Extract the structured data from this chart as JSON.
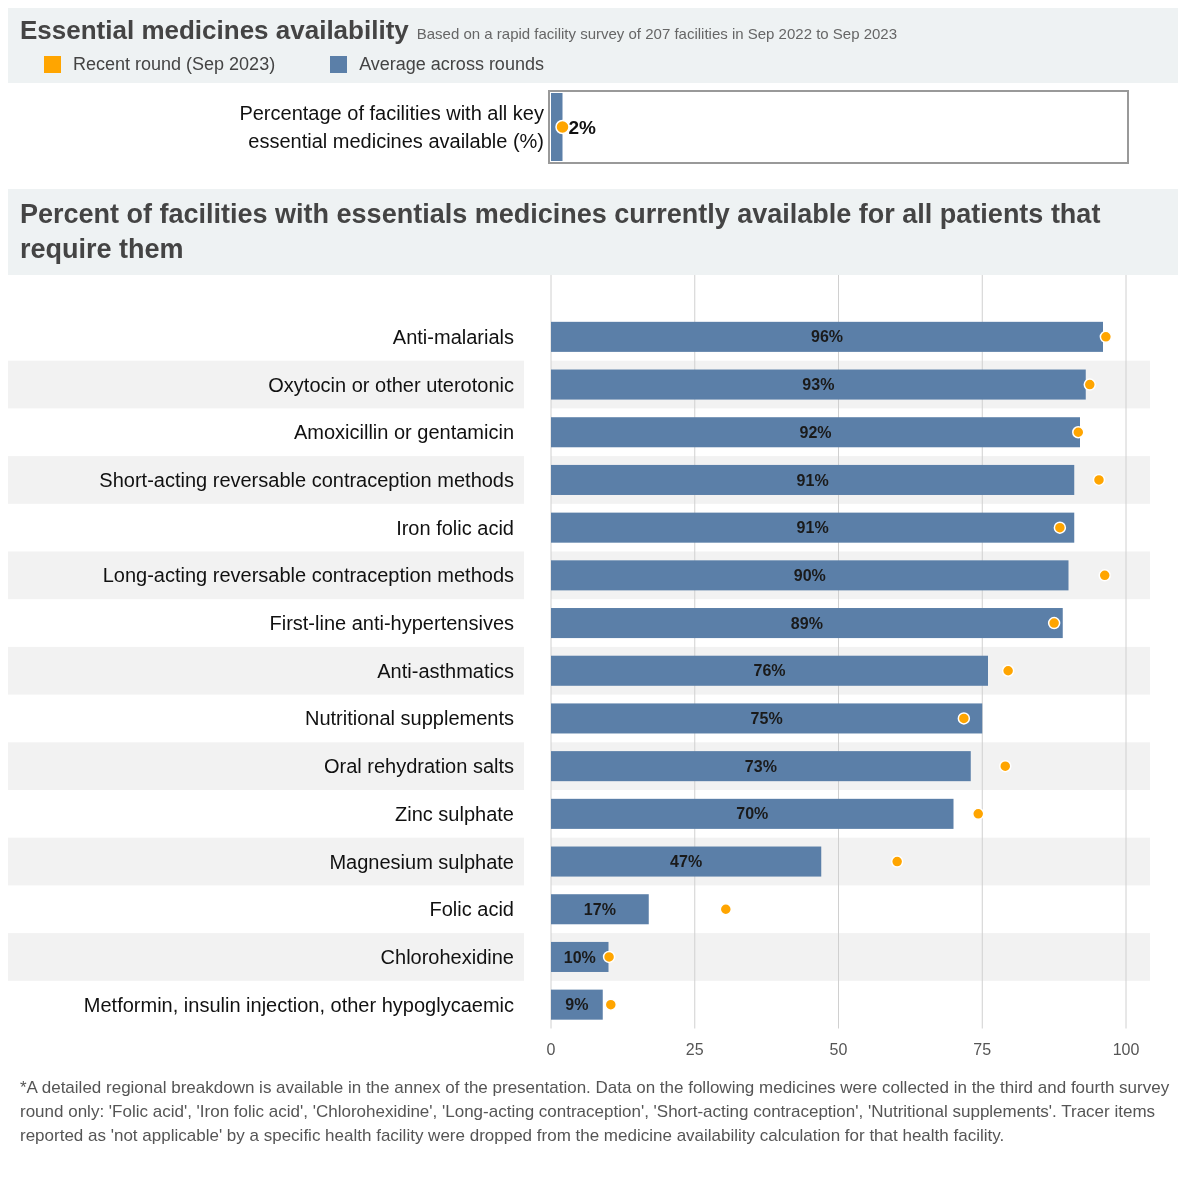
{
  "chart_data": [
    {
      "type": "bar",
      "orientation": "horizontal",
      "title": "Essential medicines availability",
      "subtitle": "Based on a rapid facility survey of 207 facilities in Sep 2022 to Sep 2023",
      "legend": "top left",
      "tick_labels": "y",
      "xlim": [
        0,
        100
      ],
      "categories": [
        "Percentage of facilities with all key essential medicines available (%)"
      ],
      "series": [
        {
          "name": "Recent round (Sep 2023)",
          "type": "scatter",
          "color": "#ffa500",
          "values": [
            2
          ]
        },
        {
          "name": "Average across rounds",
          "type": "bar",
          "color": "#5b7fa8",
          "values": [
            2
          ],
          "value_labels": [
            "2%"
          ]
        }
      ]
    },
    {
      "type": "bar",
      "orientation": "horizontal",
      "title": "Percent of facilities with essentials medicines currently available for all patients that require them",
      "grid": "x",
      "xlim": [
        0,
        100
      ],
      "xticks": [
        0,
        25,
        50,
        75,
        100
      ],
      "categories": [
        "Anti-malarials",
        "Oxytocin or other uterotonic",
        "Amoxicillin or gentamicin",
        "Short-acting reversable contraception methods",
        "Iron folic acid",
        "Long-acting reversable contraception methods",
        "First-line anti-hypertensives",
        "Anti-asthmatics",
        "Nutritional supplements",
        "Oral rehydration salts",
        "Zinc sulphate",
        "Magnesium sulphate",
        "Folic acid",
        "Chlorohexidine",
        "Metformin, insulin injection, other hypoglycaemic"
      ],
      "series": [
        {
          "type": "bar",
          "color": "#5b7fa8",
          "values": [
            96,
            93,
            92,
            91,
            91,
            90,
            89,
            76,
            75,
            73,
            70,
            47,
            17,
            10,
            9
          ],
          "value_labels": [
            "96%",
            "93%",
            "92%",
            "91%",
            "91%",
            "90%",
            "89%",
            "76%",
            "75%",
            "73%",
            "70%",
            "47%",
            "17%",
            "10%",
            "9%"
          ]
        },
        {
          "type": "scatter",
          "color": "#ffa500",
          "values": [
            96.5,
            93.7,
            91.7,
            95.3,
            88.5,
            96.3,
            87.5,
            79.5,
            71.8,
            79,
            74.3,
            60.2,
            30.4,
            10.1,
            10.4
          ]
        }
      ],
      "annotations": [
        "*A detailed regional breakdown is available in the annex of the presentation. Data on the following medicines were collected in the third and fourth survey round only: 'Folic acid', 'Iron folic acid', 'Chlorohexidine', 'Long-acting contraception', 'Short-acting contraception', 'Nutritional supplements'. Tracer items reported as 'not applicable' by a specific health facility were dropped from the medicine availability calculation for that health facility."
      ]
    }
  ]
}
